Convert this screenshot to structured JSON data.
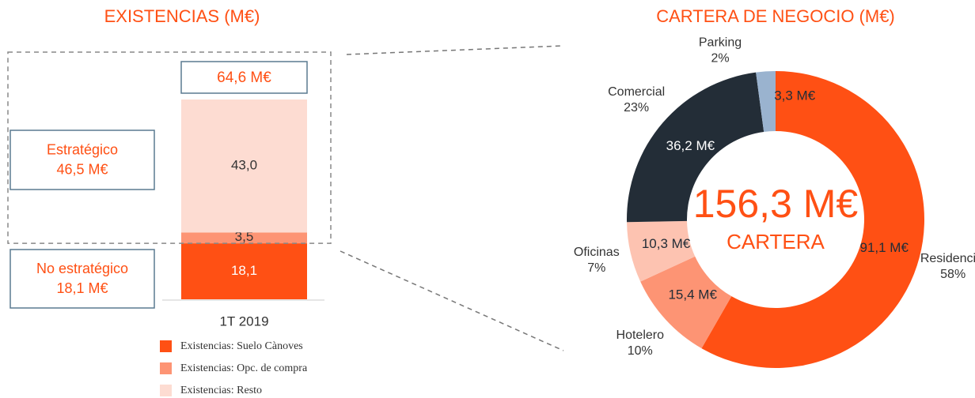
{
  "chart_data": [
    {
      "type": "stacked-bar",
      "title": "EXISTENCIAS (M€)",
      "categories": [
        "1T 2019"
      ],
      "series": [
        {
          "name": "Existencias: Suelo Cànoves",
          "color": "#ff5014",
          "values": [
            18.1
          ],
          "value_labels": [
            "18,1"
          ]
        },
        {
          "name": "Existencias: Opc. de compra",
          "color": "#fd9474",
          "values": [
            3.5
          ],
          "value_labels": [
            "3,5"
          ]
        },
        {
          "name": "Existencias: Resto",
          "color": "#fddcd2",
          "values": [
            43.0
          ],
          "value_labels": [
            "43,0"
          ]
        }
      ],
      "total": 64.6,
      "total_label": "64,6 M€",
      "groups": [
        {
          "label": "Estratégico",
          "value": 46.5,
          "value_label": "46,5 M€"
        },
        {
          "label": "No estratégico",
          "value": 18.1,
          "value_label": "18,1 M€"
        }
      ]
    },
    {
      "type": "donut",
      "title": "CARTERA DE NEGOCIO (M€)",
      "categories": [
        "Residencial",
        "Hotelero",
        "Oficinas",
        "Comercial",
        "Parking"
      ],
      "values": [
        91.1,
        15.4,
        10.3,
        36.2,
        3.3
      ],
      "value_labels": [
        "91,1 M€",
        "15,4 M€",
        "10,3 M€",
        "36,2 M€",
        "3,3 M€"
      ],
      "percent_labels": [
        "58%",
        "10%",
        "7%",
        "23%",
        "2%"
      ],
      "colors": [
        "#ff5014",
        "#fd9474",
        "#fdc3b1",
        "#232d37",
        "#9ab3cf"
      ],
      "total": 156.3,
      "total_label": "156,3 M€",
      "center_label": "CARTERA"
    }
  ]
}
